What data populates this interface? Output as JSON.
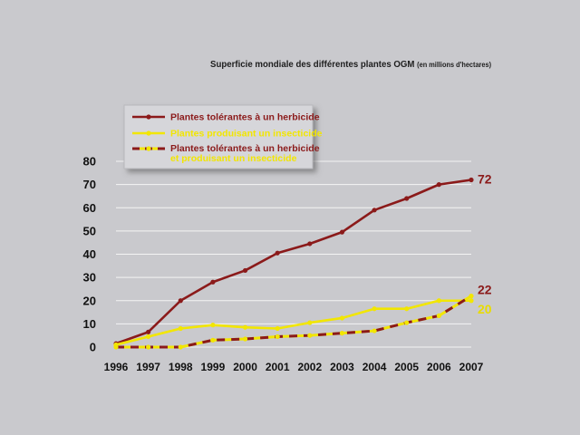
{
  "chart_data": {
    "type": "line",
    "title": "Superficie mondiale des différentes plantes OGM",
    "subtitle": "(en millions d'hectares)",
    "x": [
      "1996",
      "1997",
      "1998",
      "1999",
      "2000",
      "2001",
      "2002",
      "2003",
      "2004",
      "2005",
      "2006",
      "2007"
    ],
    "ylim": [
      0,
      80
    ],
    "yticks": [
      "0",
      "10",
      "20",
      "30",
      "40",
      "50",
      "60",
      "70",
      "80"
    ],
    "grid": true,
    "legend_position": "top-left",
    "series": [
      {
        "name": "Plantes tolérantes à un herbicide",
        "color": "#8b1a1a",
        "style": "solid",
        "values": [
          1.5,
          6.5,
          20,
          28,
          33,
          40.5,
          44.5,
          49.5,
          59,
          64,
          70,
          72
        ],
        "end_label": "72"
      },
      {
        "name": "Plantes produisant un insecticide",
        "color": "#f2e600",
        "style": "solid",
        "values": [
          1,
          4.5,
          8,
          9.5,
          8.5,
          8,
          10.5,
          12.5,
          16.5,
          16.5,
          20,
          20
        ],
        "end_label": "20"
      },
      {
        "name_lines": [
          "Plantes tolérantes à un herbicide",
          "et produisant un insecticide"
        ],
        "colors": [
          "#8b1a1a",
          "#f2e600"
        ],
        "style": "dashed-bicolor",
        "values": [
          0,
          0,
          0,
          3,
          3.5,
          4.5,
          5,
          6,
          7,
          10.5,
          13.5,
          22
        ],
        "end_label": "22"
      }
    ]
  }
}
